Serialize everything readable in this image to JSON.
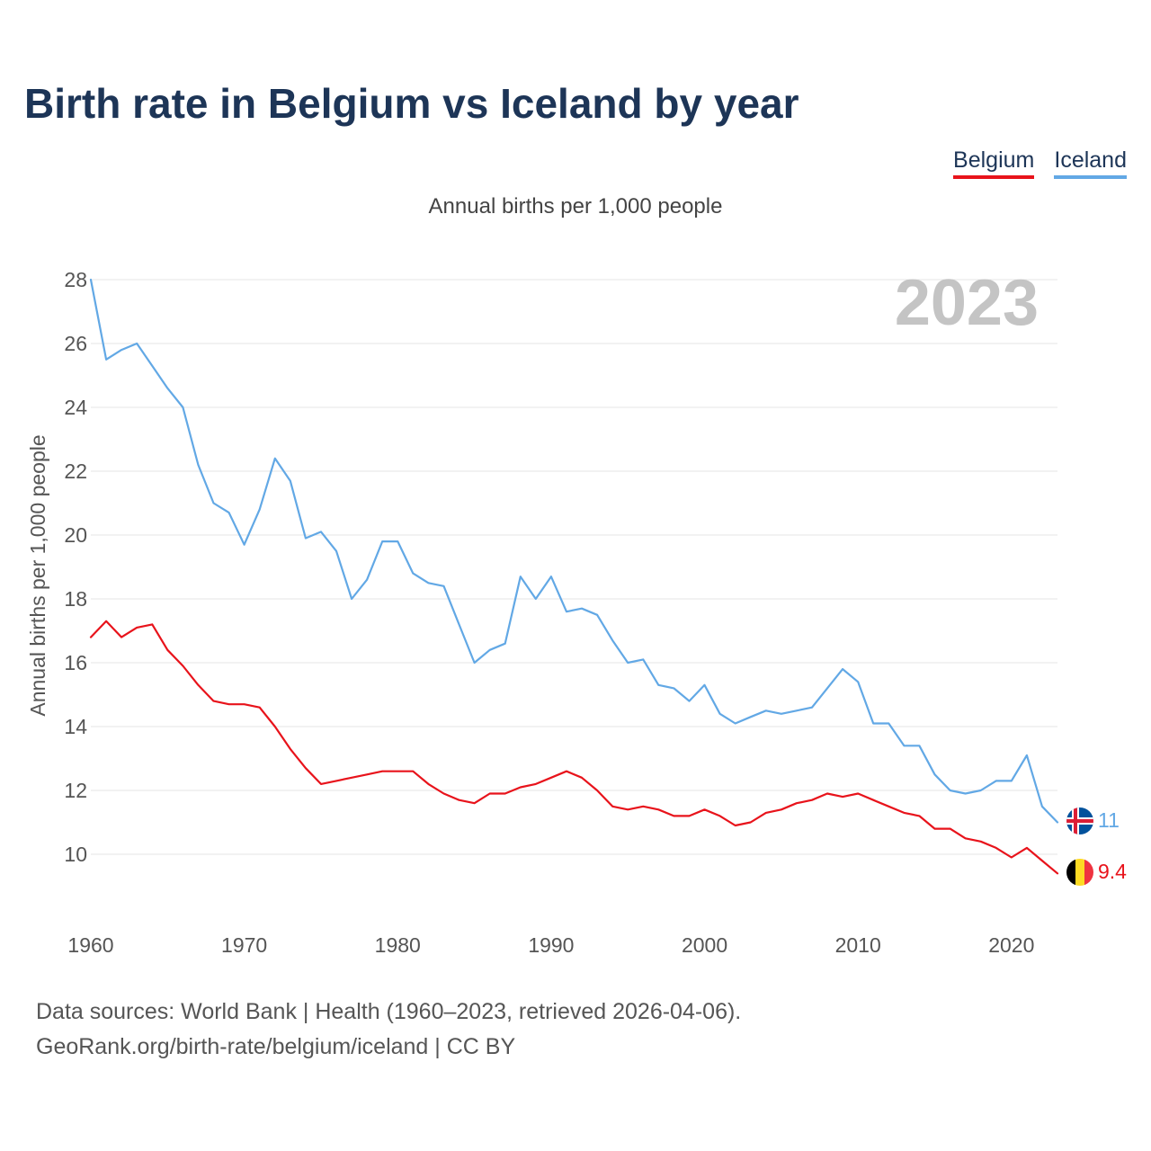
{
  "title": "Birth rate in Belgium vs Iceland by year",
  "legend": [
    {
      "label": "Belgium",
      "color": "#e8131b"
    },
    {
      "label": "Iceland",
      "color": "#62a8e5"
    }
  ],
  "subtitle": "Annual births per 1,000 people",
  "chart_data": {
    "type": "line",
    "title": "Birth rate in Belgium vs Iceland by year",
    "xlabel": "",
    "ylabel": "Annual births per 1,000 people",
    "xlim": [
      1960,
      2023
    ],
    "ylim": [
      8,
      28
    ],
    "yticks": [
      10,
      12,
      14,
      16,
      18,
      20,
      22,
      24,
      26,
      28
    ],
    "xticks": [
      1960,
      1970,
      1980,
      1990,
      2000,
      2010,
      2020
    ],
    "grid": true,
    "legend_position": "top-right",
    "year_watermark": "2023",
    "x": [
      1960,
      1961,
      1962,
      1963,
      1964,
      1965,
      1966,
      1967,
      1968,
      1969,
      1970,
      1971,
      1972,
      1973,
      1974,
      1975,
      1976,
      1977,
      1978,
      1979,
      1980,
      1981,
      1982,
      1983,
      1984,
      1985,
      1986,
      1987,
      1988,
      1989,
      1990,
      1991,
      1992,
      1993,
      1994,
      1995,
      1996,
      1997,
      1998,
      1999,
      2000,
      2001,
      2002,
      2003,
      2004,
      2005,
      2006,
      2007,
      2008,
      2009,
      2010,
      2011,
      2012,
      2013,
      2014,
      2015,
      2016,
      2017,
      2018,
      2019,
      2020,
      2021,
      2022,
      2023
    ],
    "series": [
      {
        "name": "Belgium",
        "color": "#e8131b",
        "end_label": "9.4",
        "flag": "belgium-flag",
        "values": [
          16.8,
          17.3,
          16.8,
          17.1,
          17.2,
          16.4,
          15.9,
          15.3,
          14.8,
          14.7,
          14.7,
          14.6,
          14.0,
          13.3,
          12.7,
          12.2,
          12.3,
          12.4,
          12.5,
          12.6,
          12.6,
          12.6,
          12.2,
          11.9,
          11.7,
          11.6,
          11.9,
          11.9,
          12.1,
          12.2,
          12.4,
          12.6,
          12.4,
          12.0,
          11.5,
          11.4,
          11.5,
          11.4,
          11.2,
          11.2,
          11.4,
          11.2,
          10.9,
          11.0,
          11.3,
          11.4,
          11.6,
          11.7,
          11.9,
          11.8,
          11.9,
          11.7,
          11.5,
          11.3,
          11.2,
          10.8,
          10.8,
          10.5,
          10.4,
          10.2,
          9.9,
          10.2,
          9.8,
          9.4
        ]
      },
      {
        "name": "Iceland",
        "color": "#62a8e5",
        "end_label": "11",
        "flag": "iceland-flag",
        "values": [
          28.0,
          25.5,
          25.8,
          26.0,
          25.3,
          24.6,
          24.0,
          22.2,
          21.0,
          20.7,
          19.7,
          20.8,
          22.4,
          21.7,
          19.9,
          20.1,
          19.5,
          18.0,
          18.6,
          19.8,
          19.8,
          18.8,
          18.5,
          18.4,
          17.2,
          16.0,
          16.4,
          16.6,
          18.7,
          18.0,
          18.7,
          17.6,
          17.7,
          17.5,
          16.7,
          16.0,
          16.1,
          15.3,
          15.2,
          14.8,
          15.3,
          14.4,
          14.1,
          14.3,
          14.5,
          14.4,
          14.5,
          14.6,
          15.2,
          15.8,
          15.4,
          14.1,
          14.1,
          13.4,
          13.4,
          12.5,
          12.0,
          11.9,
          12.0,
          12.3,
          12.3,
          13.1,
          11.5,
          11.0
        ]
      }
    ]
  },
  "footer": {
    "line1": "Data sources: World Bank | Health (1960–2023, retrieved 2026-04-06).",
    "line2": "GeoRank.org/birth-rate/belgium/iceland | CC BY"
  }
}
